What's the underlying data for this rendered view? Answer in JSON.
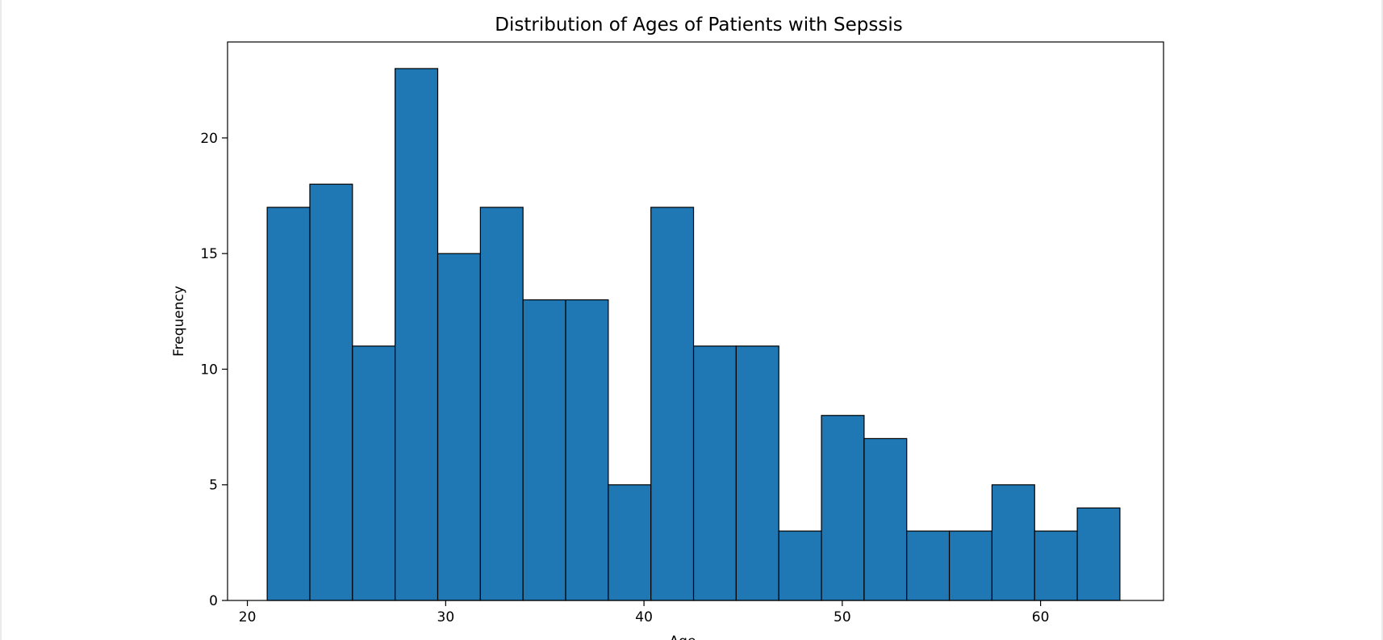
{
  "chart_data": {
    "type": "bar",
    "title": "Distribution of Ages of Patients with Sepssis",
    "xlabel": "Age",
    "ylabel": "Frequency",
    "xlim": [
      19,
      66.2
    ],
    "ylim": [
      0,
      24.15
    ],
    "xticks": [
      20,
      30,
      40,
      50,
      60
    ],
    "yticks": [
      0,
      5,
      10,
      15,
      20
    ],
    "bins": [
      {
        "x0": 21.0,
        "x1": 23.15,
        "count": 17
      },
      {
        "x0": 23.15,
        "x1": 25.3,
        "count": 18
      },
      {
        "x0": 25.3,
        "x1": 27.45,
        "count": 11
      },
      {
        "x0": 27.45,
        "x1": 29.6,
        "count": 23
      },
      {
        "x0": 29.6,
        "x1": 31.75,
        "count": 15
      },
      {
        "x0": 31.75,
        "x1": 33.9,
        "count": 17
      },
      {
        "x0": 33.9,
        "x1": 36.05,
        "count": 13
      },
      {
        "x0": 36.05,
        "x1": 38.2,
        "count": 13
      },
      {
        "x0": 38.2,
        "x1": 40.35,
        "count": 5
      },
      {
        "x0": 40.35,
        "x1": 42.5,
        "count": 17
      },
      {
        "x0": 42.5,
        "x1": 44.65,
        "count": 11
      },
      {
        "x0": 44.65,
        "x1": 46.8,
        "count": 11
      },
      {
        "x0": 46.8,
        "x1": 48.95,
        "count": 3
      },
      {
        "x0": 48.95,
        "x1": 51.1,
        "count": 8
      },
      {
        "x0": 51.1,
        "x1": 53.25,
        "count": 7
      },
      {
        "x0": 53.25,
        "x1": 55.4,
        "count": 3
      },
      {
        "x0": 55.4,
        "x1": 57.55,
        "count": 3
      },
      {
        "x0": 57.55,
        "x1": 59.7,
        "count": 5
      },
      {
        "x0": 59.7,
        "x1": 61.85,
        "count": 3
      },
      {
        "x0": 61.85,
        "x1": 64.0,
        "count": 4
      }
    ],
    "colors": {
      "bar": "#1f77b4",
      "edge": "#000000"
    },
    "grid": false,
    "legend": "none"
  }
}
